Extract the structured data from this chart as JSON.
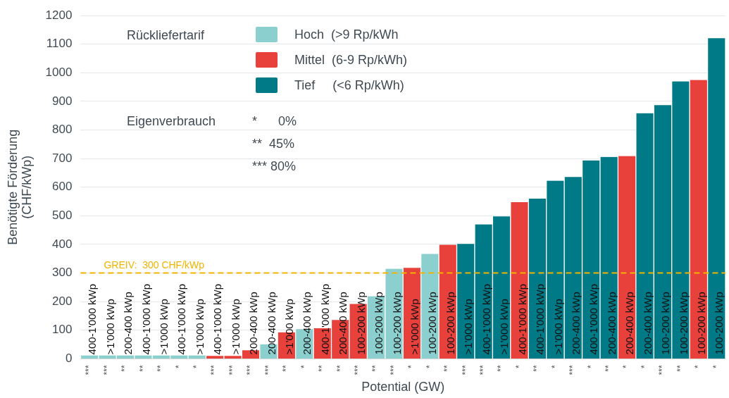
{
  "chart_data": {
    "type": "bar",
    "xlabel": "Potential (GW)",
    "ylabel": "Benötigte Förderung\n(CHF/kWp)",
    "legend_title": "Rückliefertarif",
    "legend": "top left",
    "grid": "y",
    "categories": [
      "***",
      "***",
      "**",
      "**",
      "**",
      "*",
      "*",
      "***",
      "***",
      "***",
      "***",
      "**",
      "*",
      "**",
      "**",
      "***",
      "**",
      "***",
      "*",
      "*",
      "**",
      "***",
      "***",
      "**",
      "*",
      "**",
      "*",
      "***",
      "*",
      "**",
      "*",
      "*",
      "***",
      "**",
      "*",
      "*"
    ],
    "ylim": [
      0,
      1200
    ],
    "yticks": [
      0,
      100,
      200,
      300,
      400,
      500,
      600,
      700,
      800,
      900,
      1000,
      1100,
      1200
    ],
    "series": [
      {
        "name": "Hoch  (>9 Rp/kWh",
        "color": "#8ccfcf",
        "values": [
          12,
          12,
          12,
          12,
          12,
          12,
          12,
          null,
          null,
          null,
          51,
          null,
          104,
          null,
          null,
          null,
          219,
          315,
          null,
          367,
          null,
          null,
          null,
          null,
          null,
          null,
          null,
          null,
          null,
          null,
          null,
          null,
          null,
          null,
          null,
          null
        ],
        "value_labels": [
          "400-1'000 kWp",
          ">1'000 kWp",
          "200-400 kWp",
          "400-1'000 kWp",
          ">1'000 kWp",
          "400-1'000 kWp",
          ">1'000 kWp",
          null,
          null,
          null,
          "200-400 kWp",
          null,
          "200-400 kWp",
          null,
          null,
          null,
          "100-200 kWp",
          "100-200 kWp",
          null,
          "100-200 kWp",
          null,
          null,
          null,
          null,
          null,
          null,
          null,
          null,
          null,
          null,
          null,
          null,
          null,
          null,
          null,
          null
        ]
      },
      {
        "name": "Mittel  (6-9 Rp/kWh)",
        "color": "#e8403a",
        "values": [
          null,
          null,
          null,
          null,
          null,
          null,
          null,
          10,
          10,
          30,
          null,
          93,
          null,
          107,
          136,
          192,
          null,
          null,
          318,
          null,
          399,
          null,
          null,
          null,
          548,
          null,
          null,
          null,
          null,
          null,
          709,
          null,
          null,
          null,
          975,
          null
        ],
        "value_labels": [
          null,
          null,
          null,
          null,
          null,
          null,
          null,
          "400-1'000 kWp",
          ">1'000 kWp",
          "200-400 kWp",
          null,
          ">1'000 kWp",
          null,
          "400-1'000 kWp",
          "200-400 kWp",
          "100-200 kWp",
          null,
          null,
          ">1'000 kWp",
          null,
          "100-200 kWp",
          null,
          null,
          null,
          "400-1'000 kWp",
          null,
          null,
          null,
          null,
          null,
          "200-400 kWp",
          null,
          null,
          null,
          "100-200 kWp",
          null
        ]
      },
      {
        "name": "Tief     (<6 Rp/kWh)",
        "color": "#007a87",
        "values": [
          null,
          null,
          null,
          null,
          null,
          null,
          null,
          null,
          null,
          null,
          null,
          null,
          null,
          null,
          null,
          null,
          null,
          null,
          null,
          null,
          null,
          402,
          470,
          498,
          null,
          560,
          623,
          636,
          694,
          706,
          null,
          859,
          887,
          970,
          null,
          1121
        ],
        "value_labels": [
          null,
          null,
          null,
          null,
          null,
          null,
          null,
          null,
          null,
          null,
          null,
          null,
          null,
          null,
          null,
          null,
          null,
          null,
          null,
          null,
          null,
          ">1'000 kWp",
          "400-1'000 kWp",
          ">1'000 kWp",
          null,
          "400-1'000 kWp",
          ">1'000 kWp",
          "200-400 kWp",
          "400-1'000 kWp",
          "200-400 kWp",
          null,
          "200-400 kWp",
          "100-200 kWp",
          "100-200 kWp",
          null,
          "100-200 kWp"
        ]
      }
    ],
    "ref_lines": [
      {
        "axis": "y",
        "value": 300,
        "label": "GREIV:  300 CHF/kWp",
        "color": "#f0b400",
        "line_style": "dashed"
      }
    ],
    "annotations": [
      "Eigenverbrauch",
      "*      0%",
      "**  45%",
      "*** 80%"
    ]
  }
}
